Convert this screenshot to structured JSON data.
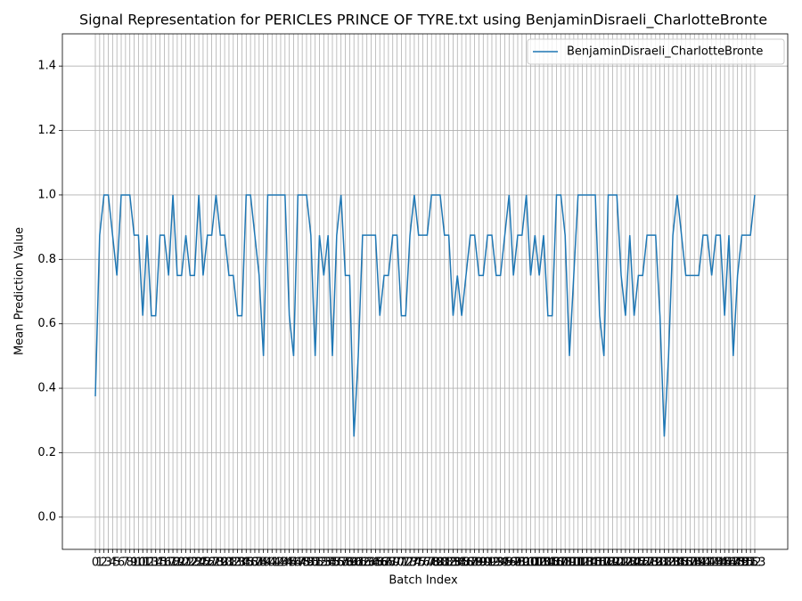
{
  "chart_data": {
    "type": "line",
    "title": "Signal Representation for PERICLES PRINCE OF TYRE.txt using BenjaminDisraeli_CharlotteBronte",
    "xlabel": "Batch Index",
    "ylabel": "Mean Prediction Value",
    "x": [
      0,
      1,
      2,
      3,
      4,
      5,
      6,
      7,
      8,
      9,
      10,
      11,
      12,
      13,
      14,
      15,
      16,
      17,
      18,
      19,
      20,
      21,
      22,
      23,
      24,
      25,
      26,
      27,
      28,
      29,
      30,
      31,
      32,
      33,
      34,
      35,
      36,
      37,
      38,
      39,
      40,
      41,
      42,
      43,
      44,
      45,
      46,
      47,
      48,
      49,
      50,
      51,
      52,
      53,
      54,
      55,
      56,
      57,
      58,
      59,
      60,
      61,
      62,
      63,
      64,
      65,
      66,
      67,
      68,
      69,
      70,
      71,
      72,
      73,
      74,
      75,
      76,
      77,
      78,
      79,
      80,
      81,
      82,
      83,
      84,
      85,
      86,
      87,
      88,
      89,
      90,
      91,
      92,
      93,
      94,
      95,
      96,
      97,
      98,
      99,
      100,
      101,
      102,
      103,
      104,
      105,
      106,
      107,
      108,
      109,
      110,
      111,
      112,
      113,
      114,
      115,
      116,
      117,
      118,
      119,
      120,
      121,
      122,
      123,
      124,
      125,
      126,
      127,
      128,
      129,
      130,
      131,
      132,
      133,
      134,
      135,
      136,
      137,
      138,
      139,
      140,
      141,
      142,
      143,
      144,
      145,
      146,
      147,
      148,
      149,
      150,
      151,
      152,
      153
    ],
    "series": [
      {
        "name": "BenjaminDisraeli_CharlotteBronte",
        "color": "#1f77b4",
        "values": [
          0.375,
          0.875,
          1,
          1,
          0.875,
          0.75,
          1,
          1,
          1,
          0.875,
          0.875,
          0.625,
          0.875,
          0.625,
          0.625,
          0.875,
          0.875,
          0.75,
          1,
          0.75,
          0.75,
          0.875,
          0.75,
          0.75,
          1,
          0.75,
          0.875,
          0.875,
          1,
          0.875,
          0.875,
          0.75,
          0.75,
          0.625,
          0.625,
          1,
          1,
          0.875,
          0.75,
          0.5,
          1,
          1,
          1,
          1,
          1,
          0.625,
          0.5,
          1,
          1,
          1,
          0.875,
          0.5,
          0.875,
          0.75,
          0.875,
          0.5,
          0.875,
          1,
          0.75,
          0.75,
          0.25,
          0.5,
          0.875,
          0.875,
          0.875,
          0.875,
          0.625,
          0.75,
          0.75,
          0.875,
          0.875,
          0.625,
          0.625,
          0.875,
          1,
          0.875,
          0.875,
          0.875,
          1,
          1,
          1,
          0.875,
          0.875,
          0.625,
          0.75,
          0.625,
          0.75,
          0.875,
          0.875,
          0.75,
          0.75,
          0.875,
          0.875,
          0.75,
          0.75,
          0.875,
          1,
          0.75,
          0.875,
          0.875,
          1,
          0.75,
          0.875,
          0.75,
          0.875,
          0.625,
          0.625,
          1,
          1,
          0.875,
          0.5,
          0.75,
          1,
          1,
          1,
          1,
          1,
          0.625,
          0.5,
          1,
          1,
          1,
          0.75,
          0.625,
          0.875,
          0.625,
          0.75,
          0.75,
          0.875,
          0.875,
          0.875,
          0.625,
          0.25,
          0.5,
          0.875,
          1,
          0.875,
          0.75,
          0.75,
          0.75,
          0.75,
          0.875,
          0.875,
          0.75,
          0.875,
          0.875,
          0.625,
          0.875,
          0.5,
          0.75,
          0.875,
          0.875,
          0.875,
          1
        ]
      }
    ],
    "xlim": [
      -7.65,
      160.65
    ],
    "xticks": [
      0,
      1,
      2,
      3,
      4,
      5,
      6,
      7,
      8,
      9,
      10,
      11,
      12,
      13,
      14,
      15,
      16,
      17,
      18,
      19,
      20,
      21,
      22,
      23,
      24,
      25,
      26,
      27,
      28,
      29,
      30,
      31,
      32,
      33,
      34,
      35,
      36,
      37,
      38,
      39,
      40,
      41,
      42,
      43,
      44,
      45,
      46,
      47,
      48,
      49,
      50,
      51,
      52,
      53,
      54,
      55,
      56,
      57,
      58,
      59,
      60,
      61,
      62,
      63,
      64,
      65,
      66,
      67,
      68,
      69,
      70,
      71,
      72,
      73,
      74,
      75,
      76,
      77,
      78,
      79,
      80,
      81,
      82,
      83,
      84,
      85,
      86,
      87,
      88,
      89,
      90,
      91,
      92,
      93,
      94,
      95,
      96,
      97,
      98,
      99,
      100,
      101,
      102,
      103,
      104,
      105,
      106,
      107,
      108,
      109,
      110,
      111,
      112,
      113,
      114,
      115,
      116,
      117,
      118,
      119,
      120,
      121,
      122,
      123,
      124,
      125,
      126,
      127,
      128,
      129,
      130,
      131,
      132,
      133,
      134,
      135,
      136,
      137,
      138,
      139,
      140,
      141,
      142,
      143,
      144,
      145,
      146,
      147,
      148,
      149,
      150,
      151,
      152,
      153
    ],
    "ylim": [
      -0.1,
      1.5
    ],
    "yticks": [
      {
        "value": 0,
        "label": "0.0"
      },
      0.2,
      0.4,
      0.6,
      0.8,
      {
        "value": 1,
        "label": "1.0"
      },
      1.2,
      1.4
    ],
    "grid": true,
    "legend": "upper right"
  }
}
